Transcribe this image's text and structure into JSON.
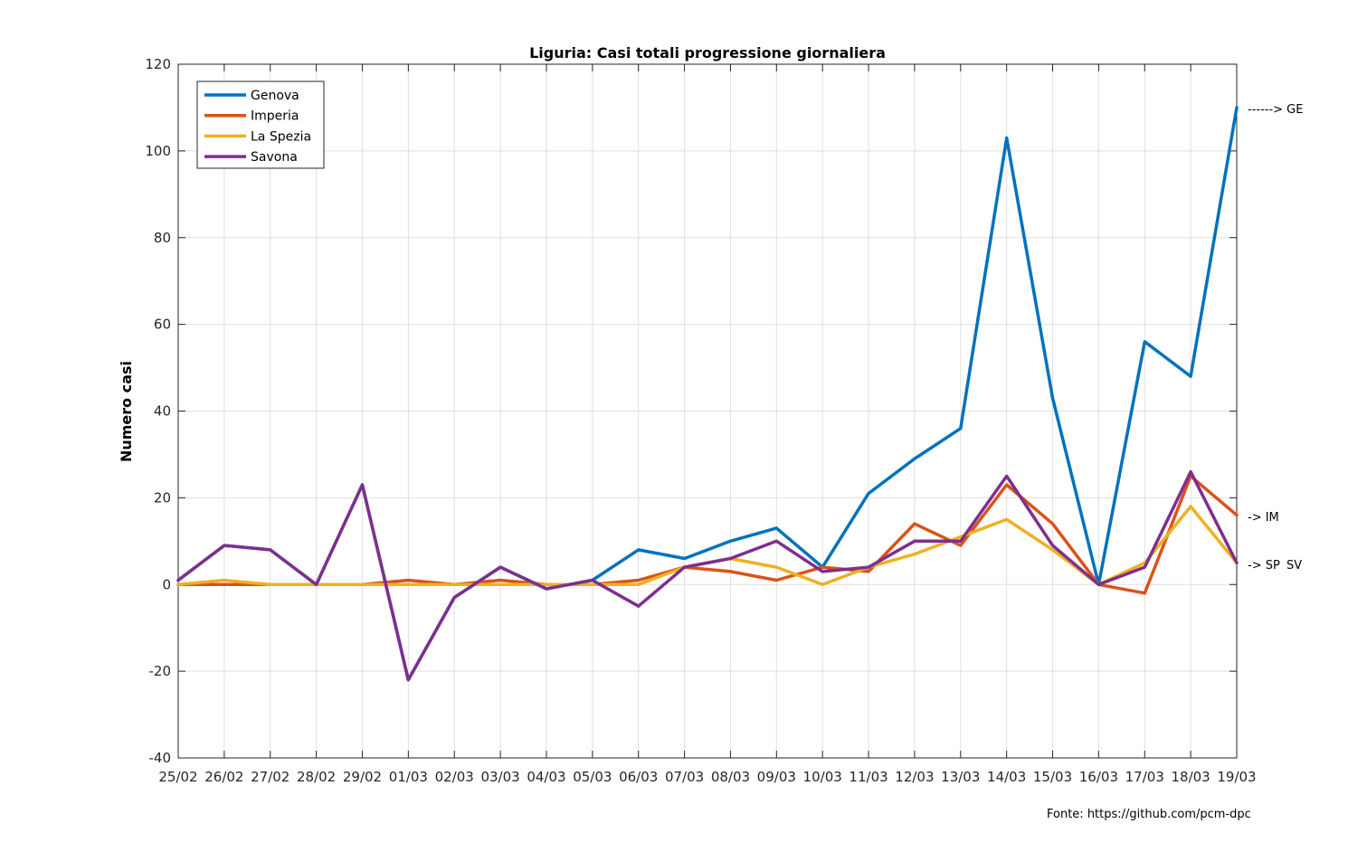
{
  "chart_data": {
    "type": "line",
    "title": "Liguria: Casi totali progressione giornaliera",
    "xlabel": "",
    "ylabel": "Numero casi",
    "ylim": [
      -40,
      120
    ],
    "yticks": [
      -40,
      -20,
      0,
      20,
      40,
      60,
      80,
      100,
      120
    ],
    "grid": true,
    "legend_position": "top-left",
    "categories": [
      "25/02",
      "26/02",
      "27/02",
      "28/02",
      "29/02",
      "01/03",
      "02/03",
      "03/03",
      "04/03",
      "05/03",
      "06/03",
      "07/03",
      "08/03",
      "09/03",
      "10/03",
      "11/03",
      "12/03",
      "13/03",
      "14/03",
      "15/03",
      "16/03",
      "17/03",
      "18/03",
      "19/03"
    ],
    "series": [
      {
        "name": "Genova",
        "color": "#0072BD",
        "annotation": "------> GE",
        "values": [
          1,
          9,
          8,
          0,
          23,
          -22,
          -3,
          4,
          -1,
          1,
          8,
          6,
          10,
          13,
          4,
          21,
          29,
          36,
          103,
          43,
          0,
          56,
          48,
          110
        ]
      },
      {
        "name": "Imperia",
        "color": "#D95319",
        "annotation": "-> IM",
        "values": [
          0,
          0,
          0,
          0,
          0,
          1,
          0,
          1,
          0,
          0,
          1,
          4,
          3,
          1,
          4,
          3,
          14,
          9,
          23,
          14,
          0,
          -2,
          25,
          16
        ]
      },
      {
        "name": "La Spezia",
        "color": "#EDB120",
        "annotation": "-> SP",
        "values": [
          0,
          1,
          0,
          0,
          0,
          0,
          0,
          0,
          0,
          0,
          0,
          4,
          6,
          4,
          0,
          4,
          7,
          11,
          15,
          8,
          0,
          5,
          18,
          5
        ]
      },
      {
        "name": "Savona",
        "color": "#7E2F8E",
        "annotation": "SV",
        "values": [
          1,
          9,
          8,
          0,
          23,
          -22,
          -3,
          4,
          -1,
          1,
          -5,
          4,
          6,
          10,
          3,
          4,
          10,
          10,
          25,
          9,
          0,
          4,
          26,
          5
        ]
      }
    ]
  },
  "source_text": "Fonte: https://github.com/pcm-dpc"
}
